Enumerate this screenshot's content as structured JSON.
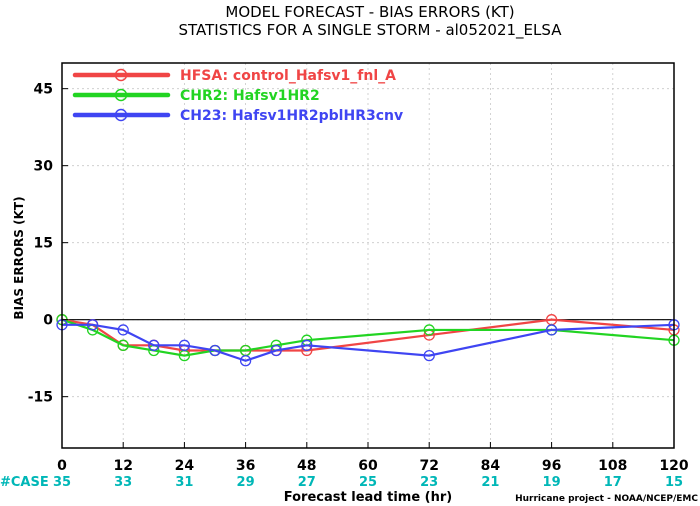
{
  "chart_data": {
    "type": "line",
    "title": "MODEL FORECAST - BIAS ERRORS (KT)",
    "subtitle": "STATISTICS FOR A SINGLE STORM - al052021_ELSA",
    "xlabel": "Forecast lead time (hr)",
    "ylabel": "BIAS ERRORS (KT)",
    "xlim": [
      0,
      120
    ],
    "ylim": [
      -25,
      50
    ],
    "xticks": [
      0,
      12,
      24,
      36,
      48,
      60,
      72,
      84,
      96,
      108,
      120
    ],
    "yticks": [
      45,
      30,
      15,
      0,
      -15
    ],
    "grid": true,
    "legend_position": "top-left",
    "zero_line": true,
    "case_label": "#CASE",
    "cases": [
      35,
      33,
      31,
      29,
      27,
      25,
      23,
      21,
      19,
      17,
      15
    ],
    "case_color": "#00b7b7",
    "credit": "Hurricane project - NOAA/NCEP/EMC",
    "series": [
      {
        "name": "HFSA: control_Hafsv1_fnl_A",
        "color": "#f04545",
        "x": [
          0,
          6,
          12,
          18,
          24,
          30,
          36,
          42,
          48,
          72,
          96,
          120
        ],
        "y": [
          0,
          -1,
          -5,
          -5,
          -6,
          -6,
          -6,
          -6,
          -6,
          -3,
          0,
          -2
        ]
      },
      {
        "name": "CHR2: Hafsv1HR2",
        "color": "#22d422",
        "x": [
          0,
          6,
          12,
          18,
          24,
          30,
          36,
          42,
          48,
          72,
          96,
          120
        ],
        "y": [
          0,
          -2,
          -5,
          -6,
          -7,
          -6,
          -6,
          -5,
          -4,
          -2,
          -2,
          -4
        ]
      },
      {
        "name": "CH23: Hafsv1HR2pblHR3cnv",
        "color": "#3f45f2",
        "x": [
          0,
          6,
          12,
          18,
          24,
          30,
          36,
          42,
          48,
          72,
          96,
          120
        ],
        "y": [
          -1,
          -1,
          -2,
          -5,
          -5,
          -6,
          -8,
          -6,
          -5,
          -7,
          -2,
          -1
        ]
      }
    ]
  }
}
